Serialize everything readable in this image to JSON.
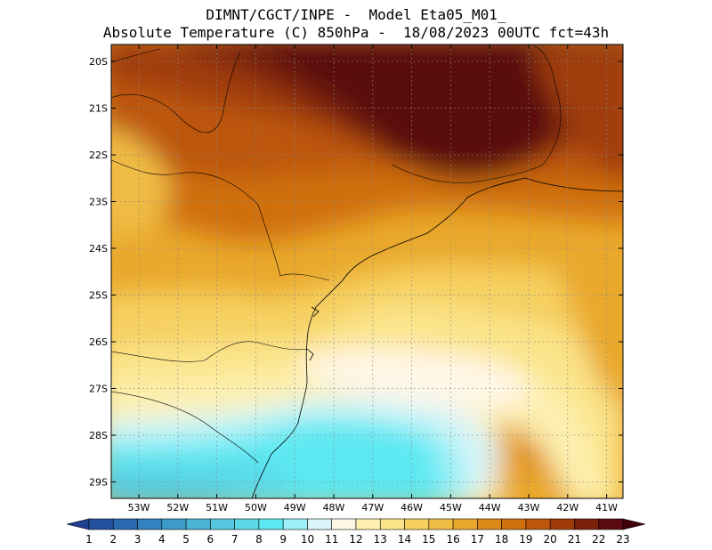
{
  "title": {
    "line1": "DIMNT/CGCT/INPE -  Model Eta05_M01_",
    "line2": "Absolute Temperature (C) 850hPa -  18/08/2023 00UTC fct=43h"
  },
  "map": {
    "latitudes": [
      "20S",
      "21S",
      "22S",
      "23S",
      "24S",
      "25S",
      "26S",
      "27S",
      "28S",
      "29S"
    ],
    "longitudes": [
      "53W",
      "52W",
      "51W",
      "50W",
      "49W",
      "48W",
      "47W",
      "46W",
      "45W",
      "44W",
      "43W",
      "42W",
      "41W"
    ],
    "variable": "Absolute Temperature (C)",
    "level": "850hPa",
    "date": "18/08/2023 00UTC",
    "forecast": "fct=43h"
  },
  "colorbar": {
    "labels": [
      "1",
      "2",
      "3",
      "4",
      "5",
      "6",
      "7",
      "8",
      "9",
      "10",
      "11",
      "12",
      "13",
      "14",
      "15",
      "16",
      "17",
      "18",
      "19",
      "20",
      "21",
      "22",
      "23"
    ],
    "colors": [
      "#1e3f8f",
      "#2353a0",
      "#2a69b0",
      "#3282bf",
      "#3c9bc9",
      "#48b3d4",
      "#55c8df",
      "#5ad8e8",
      "#5ce8f2",
      "#9af0f6",
      "#d8f4f8",
      "#fff6e6",
      "#fdf0b0",
      "#fbe48a",
      "#f6d060",
      "#efbc44",
      "#e9a82c",
      "#de8a18",
      "#d0700e",
      "#bd560a",
      "#a03c08",
      "#7a2008",
      "#5a0a10",
      "#40000a"
    ]
  }
}
